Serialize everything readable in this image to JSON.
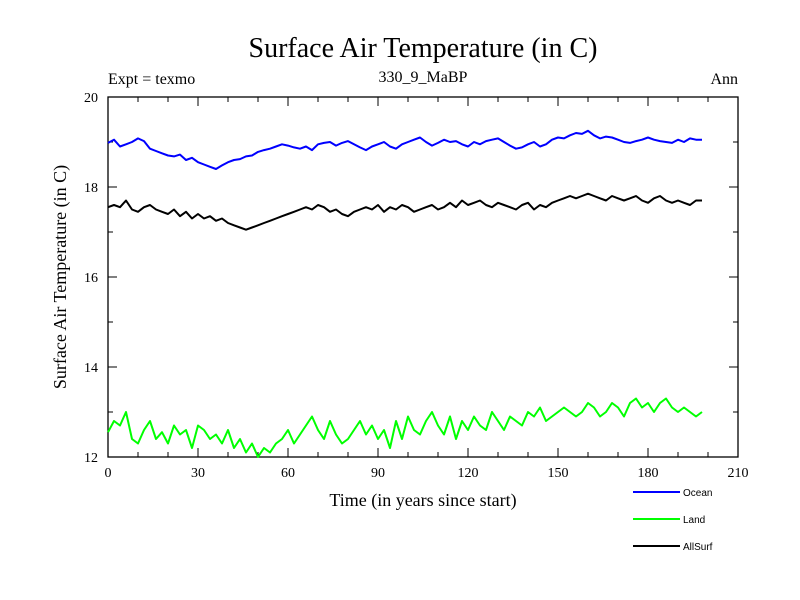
{
  "chart_data": {
    "type": "line",
    "title": "Surface Air Temperature (in C)",
    "subtitle_left": "Expt = texmo",
    "subtitle_center": "330_9_MaBP",
    "subtitle_right": "Ann",
    "xlabel": "Time (in years since start)",
    "ylabel": "Surface Air Temperature (in C)",
    "xlim": [
      0,
      210
    ],
    "ylim": [
      12,
      20
    ],
    "xticks": [
      0,
      30,
      60,
      90,
      120,
      150,
      180,
      210
    ],
    "yticks": [
      12,
      14,
      16,
      18,
      20
    ],
    "legend_position": "bottom-right",
    "series": [
      {
        "name": "Ocean",
        "color": "#0000ff",
        "x_start": 0,
        "x_step": 2,
        "values": [
          18.98,
          19.05,
          18.9,
          18.95,
          19.0,
          19.08,
          19.02,
          18.85,
          18.8,
          18.75,
          18.7,
          18.68,
          18.72,
          18.6,
          18.65,
          18.55,
          18.5,
          18.45,
          18.4,
          18.48,
          18.55,
          18.6,
          18.62,
          18.68,
          18.7,
          18.78,
          18.82,
          18.85,
          18.9,
          18.95,
          18.92,
          18.88,
          18.85,
          18.9,
          18.82,
          18.95,
          18.98,
          19.0,
          18.92,
          18.98,
          19.02,
          18.95,
          18.88,
          18.82,
          18.9,
          18.95,
          19.0,
          18.9,
          18.85,
          18.95,
          19.0,
          19.05,
          19.1,
          19.0,
          18.92,
          18.98,
          19.05,
          19.0,
          19.02,
          18.95,
          18.9,
          19.0,
          18.95,
          19.02,
          19.05,
          19.08,
          19.0,
          18.92,
          18.85,
          18.88,
          18.95,
          19.0,
          18.9,
          18.95,
          19.05,
          19.1,
          19.08,
          19.15,
          19.2,
          19.18,
          19.25,
          19.15,
          19.08,
          19.12,
          19.1,
          19.05,
          19.0,
          18.98,
          19.02,
          19.05,
          19.1,
          19.05,
          19.02,
          19.0,
          18.98,
          19.05,
          19.0,
          19.08,
          19.05,
          19.05
        ]
      },
      {
        "name": "Land",
        "color": "#00ff00",
        "x_start": 0,
        "x_step": 2,
        "values": [
          12.55,
          12.8,
          12.7,
          13.0,
          12.4,
          12.3,
          12.6,
          12.8,
          12.4,
          12.55,
          12.3,
          12.7,
          12.5,
          12.6,
          12.2,
          12.7,
          12.6,
          12.4,
          12.5,
          12.3,
          12.6,
          12.2,
          12.4,
          12.1,
          12.3,
          12.0,
          12.2,
          12.1,
          12.3,
          12.4,
          12.6,
          12.3,
          12.5,
          12.7,
          12.9,
          12.6,
          12.4,
          12.8,
          12.5,
          12.3,
          12.4,
          12.6,
          12.8,
          12.5,
          12.7,
          12.4,
          12.6,
          12.2,
          12.8,
          12.4,
          12.9,
          12.6,
          12.5,
          12.8,
          13.0,
          12.7,
          12.5,
          12.9,
          12.4,
          12.8,
          12.6,
          12.9,
          12.7,
          12.6,
          13.0,
          12.8,
          12.6,
          12.9,
          12.8,
          12.7,
          13.0,
          12.9,
          13.1,
          12.8,
          12.9,
          13.0,
          13.1,
          13.0,
          12.9,
          13.0,
          13.2,
          13.1,
          12.9,
          13.0,
          13.2,
          13.1,
          12.9,
          13.2,
          13.3,
          13.1,
          13.2,
          13.0,
          13.2,
          13.3,
          13.1,
          13.0,
          13.1,
          13.0,
          12.9,
          13.0
        ]
      },
      {
        "name": "AllSurf",
        "color": "#000000",
        "x_start": 0,
        "x_step": 2,
        "values": [
          17.55,
          17.6,
          17.55,
          17.7,
          17.5,
          17.45,
          17.55,
          17.6,
          17.5,
          17.45,
          17.4,
          17.5,
          17.35,
          17.45,
          17.3,
          17.4,
          17.3,
          17.35,
          17.25,
          17.3,
          17.2,
          17.15,
          17.1,
          17.05,
          17.1,
          17.15,
          17.2,
          17.25,
          17.3,
          17.35,
          17.4,
          17.45,
          17.5,
          17.55,
          17.5,
          17.6,
          17.55,
          17.45,
          17.5,
          17.4,
          17.35,
          17.45,
          17.5,
          17.55,
          17.5,
          17.6,
          17.45,
          17.55,
          17.5,
          17.6,
          17.55,
          17.45,
          17.5,
          17.55,
          17.6,
          17.5,
          17.55,
          17.65,
          17.55,
          17.7,
          17.6,
          17.65,
          17.7,
          17.6,
          17.55,
          17.65,
          17.6,
          17.55,
          17.5,
          17.6,
          17.65,
          17.5,
          17.6,
          17.55,
          17.65,
          17.7,
          17.75,
          17.8,
          17.75,
          17.8,
          17.85,
          17.8,
          17.75,
          17.7,
          17.8,
          17.75,
          17.7,
          17.75,
          17.8,
          17.7,
          17.65,
          17.75,
          17.8,
          17.7,
          17.65,
          17.7,
          17.65,
          17.6,
          17.7,
          17.7
        ]
      }
    ]
  }
}
